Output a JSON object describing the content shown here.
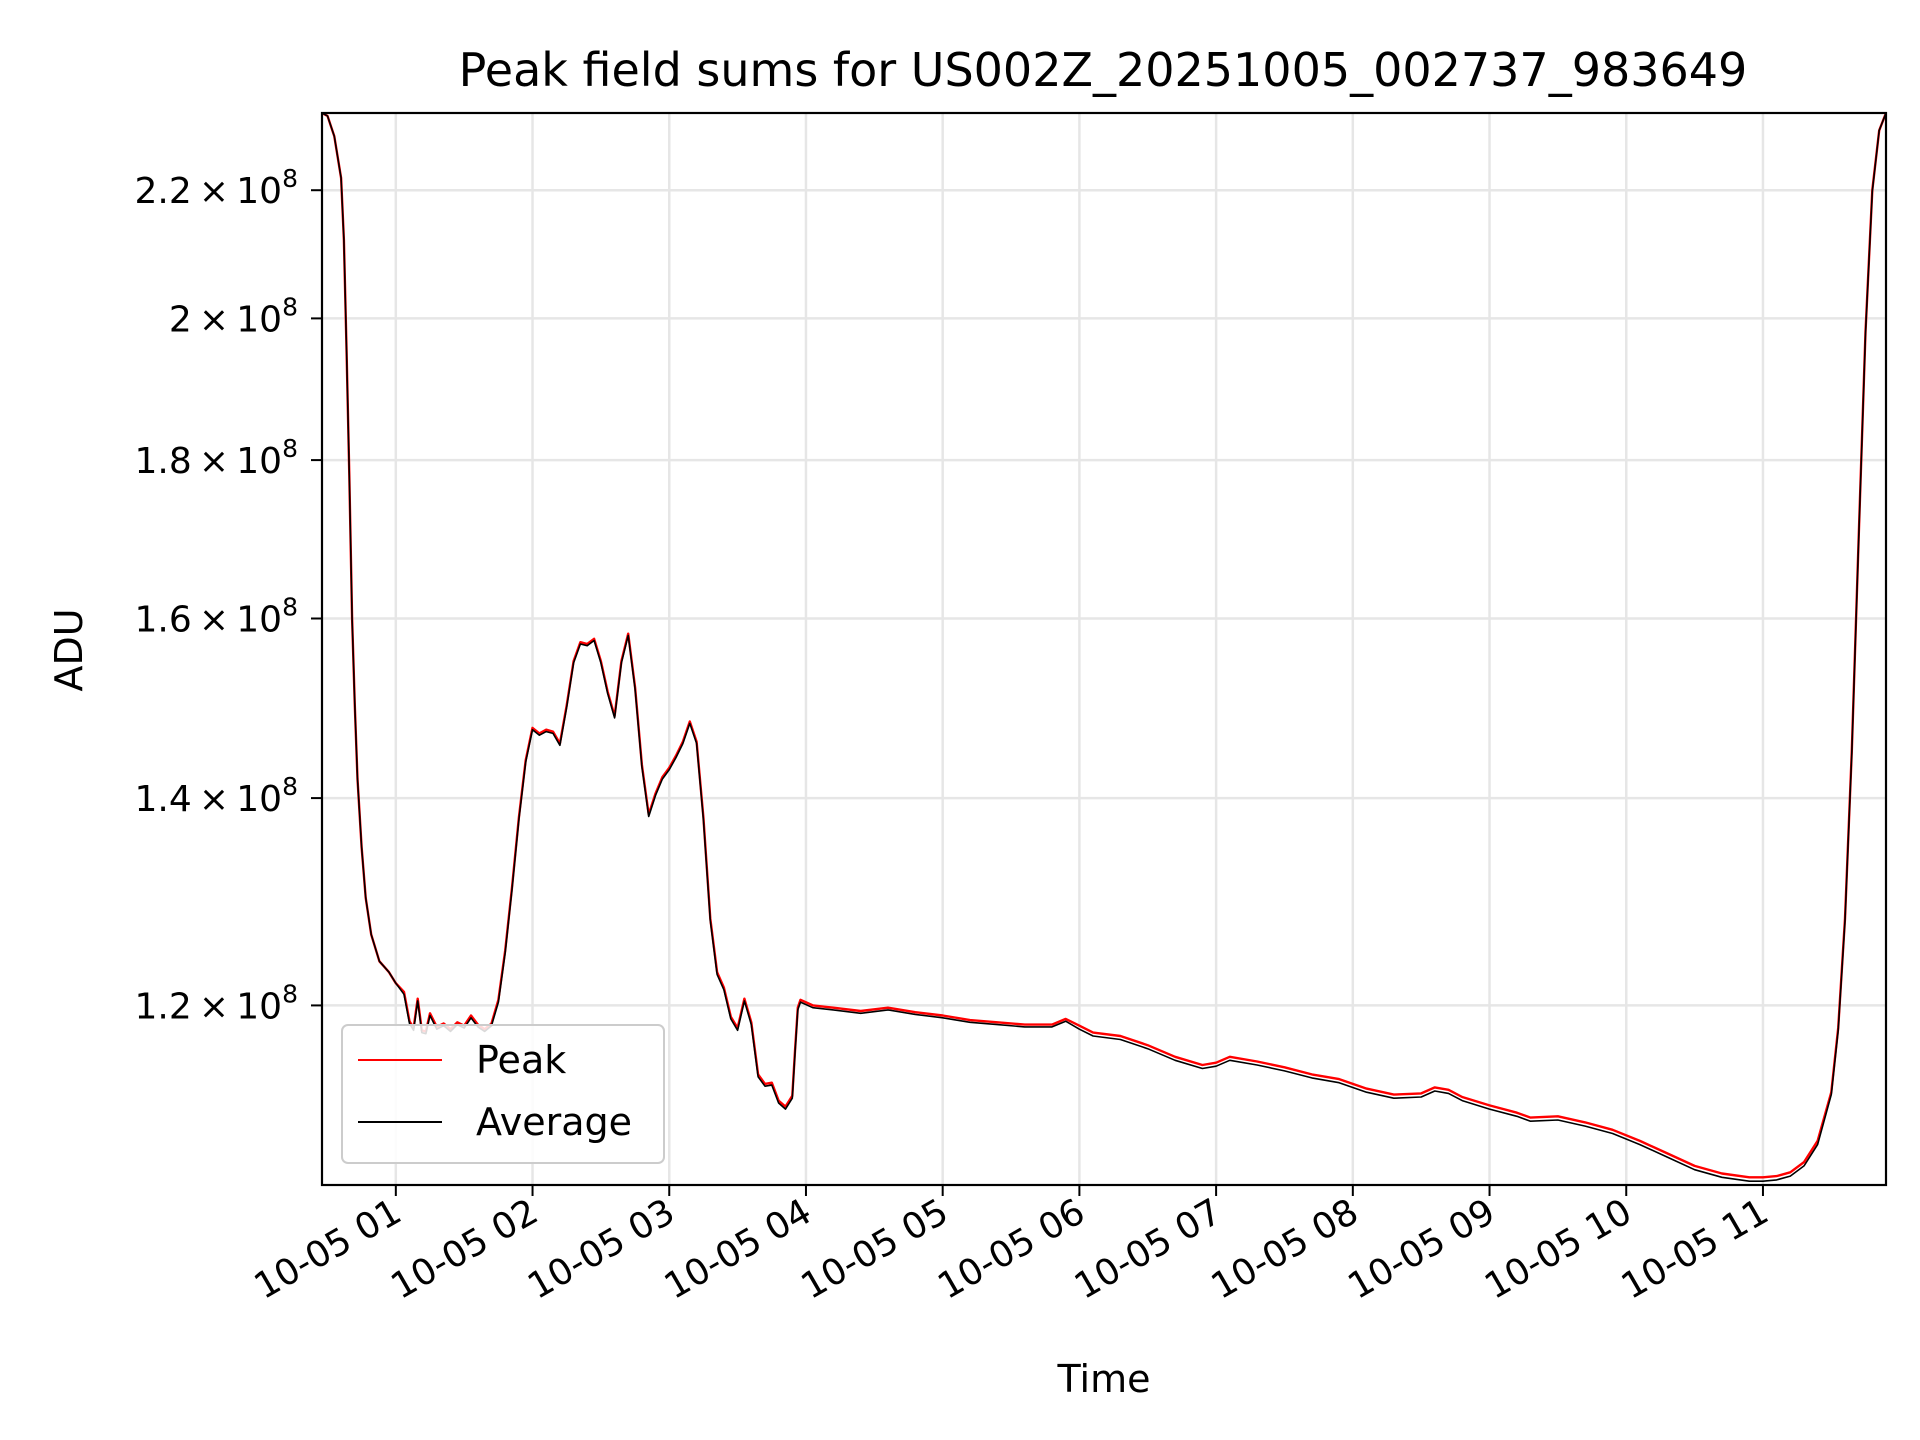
{
  "chart_data": {
    "type": "line",
    "title": "Peak field sums for US002Z_20251005_002737_983649",
    "xlabel": "Time",
    "ylabel": "ADU",
    "yscale": "log",
    "xlim": [
      0.46,
      11.9
    ],
    "ylim": [
      105000000,
      233000000
    ],
    "grid": true,
    "legend_position": "lower-left",
    "x_unit": "hours since 2025-10-05 00:00",
    "x_ticks": [
      {
        "value": 1,
        "label": "10-05 01"
      },
      {
        "value": 2,
        "label": "10-05 02"
      },
      {
        "value": 3,
        "label": "10-05 03"
      },
      {
        "value": 4,
        "label": "10-05 04"
      },
      {
        "value": 5,
        "label": "10-05 05"
      },
      {
        "value": 6,
        "label": "10-05 06"
      },
      {
        "value": 7,
        "label": "10-05 07"
      },
      {
        "value": 8,
        "label": "10-05 08"
      },
      {
        "value": 9,
        "label": "10-05 09"
      },
      {
        "value": 10,
        "label": "10-05 10"
      },
      {
        "value": 11,
        "label": "10-05 11"
      }
    ],
    "y_ticks": [
      {
        "value": 120000000,
        "mantissa": "1.2",
        "exponent": "8"
      },
      {
        "value": 140000000,
        "mantissa": "1.4",
        "exponent": "8"
      },
      {
        "value": 160000000,
        "mantissa": "1.6",
        "exponent": "8"
      },
      {
        "value": 180000000,
        "mantissa": "1.8",
        "exponent": "8"
      },
      {
        "value": 200000000,
        "mantissa": "2",
        "exponent": "8"
      },
      {
        "value": 220000000,
        "mantissa": "2.2",
        "exponent": "8"
      }
    ],
    "series": [
      {
        "name": "Peak",
        "color": "#ff0000",
        "points": [
          [
            0.46,
            233000000
          ],
          [
            0.5,
            232500000
          ],
          [
            0.55,
            229000000
          ],
          [
            0.6,
            222000000
          ],
          [
            0.62,
            212000000
          ],
          [
            0.64,
            195000000
          ],
          [
            0.66,
            178000000
          ],
          [
            0.68,
            160000000
          ],
          [
            0.7,
            150000000
          ],
          [
            0.72,
            142000000
          ],
          [
            0.75,
            135000000
          ],
          [
            0.78,
            130000000
          ],
          [
            0.82,
            126500000
          ],
          [
            0.88,
            124000000
          ],
          [
            0.95,
            123000000
          ],
          [
            1.0,
            122000000
          ],
          [
            1.06,
            121200000
          ],
          [
            1.1,
            118600000
          ],
          [
            1.13,
            118000000
          ],
          [
            1.16,
            120600000
          ],
          [
            1.19,
            117800000
          ],
          [
            1.22,
            117700000
          ],
          [
            1.25,
            119300000
          ],
          [
            1.3,
            118100000
          ],
          [
            1.35,
            118400000
          ],
          [
            1.4,
            117900000
          ],
          [
            1.45,
            118500000
          ],
          [
            1.5,
            118200000
          ],
          [
            1.55,
            119100000
          ],
          [
            1.6,
            118300000
          ],
          [
            1.65,
            117900000
          ],
          [
            1.7,
            118400000
          ],
          [
            1.75,
            120500000
          ],
          [
            1.8,
            125000000
          ],
          [
            1.85,
            131000000
          ],
          [
            1.9,
            138000000
          ],
          [
            1.95,
            144000000
          ],
          [
            2.0,
            147500000
          ],
          [
            2.05,
            146900000
          ],
          [
            2.1,
            147300000
          ],
          [
            2.15,
            147100000
          ],
          [
            2.2,
            145800000
          ],
          [
            2.25,
            150000000
          ],
          [
            2.3,
            155000000
          ],
          [
            2.35,
            157200000
          ],
          [
            2.4,
            157000000
          ],
          [
            2.45,
            157600000
          ],
          [
            2.5,
            155000000
          ],
          [
            2.55,
            151500000
          ],
          [
            2.6,
            148800000
          ],
          [
            2.65,
            155000000
          ],
          [
            2.7,
            158200000
          ],
          [
            2.75,
            152000000
          ],
          [
            2.8,
            143500000
          ],
          [
            2.85,
            138300000
          ],
          [
            2.9,
            140500000
          ],
          [
            2.95,
            142200000
          ],
          [
            3.0,
            143200000
          ],
          [
            3.05,
            144500000
          ],
          [
            3.1,
            146000000
          ],
          [
            3.15,
            148200000
          ],
          [
            3.2,
            146000000
          ],
          [
            3.25,
            138000000
          ],
          [
            3.3,
            128000000
          ],
          [
            3.35,
            123000000
          ],
          [
            3.4,
            121600000
          ],
          [
            3.45,
            119000000
          ],
          [
            3.5,
            118000000
          ],
          [
            3.55,
            120600000
          ],
          [
            3.6,
            118500000
          ],
          [
            3.65,
            114000000
          ],
          [
            3.7,
            113200000
          ],
          [
            3.75,
            113300000
          ],
          [
            3.8,
            111800000
          ],
          [
            3.85,
            111300000
          ],
          [
            3.9,
            112200000
          ],
          [
            3.92,
            116000000
          ],
          [
            3.94,
            119800000
          ],
          [
            3.96,
            120500000
          ],
          [
            4.05,
            120000000
          ],
          [
            4.2,
            119800000
          ],
          [
            4.4,
            119500000
          ],
          [
            4.6,
            119800000
          ],
          [
            4.8,
            119400000
          ],
          [
            5.0,
            119100000
          ],
          [
            5.2,
            118700000
          ],
          [
            5.4,
            118500000
          ],
          [
            5.6,
            118300000
          ],
          [
            5.8,
            118300000
          ],
          [
            5.9,
            118800000
          ],
          [
            6.0,
            118200000
          ],
          [
            6.1,
            117600000
          ],
          [
            6.3,
            117300000
          ],
          [
            6.5,
            116500000
          ],
          [
            6.7,
            115500000
          ],
          [
            6.9,
            114800000
          ],
          [
            7.0,
            115000000
          ],
          [
            7.1,
            115500000
          ],
          [
            7.3,
            115100000
          ],
          [
            7.5,
            114600000
          ],
          [
            7.7,
            114000000
          ],
          [
            7.9,
            113600000
          ],
          [
            8.1,
            112800000
          ],
          [
            8.3,
            112300000
          ],
          [
            8.5,
            112400000
          ],
          [
            8.6,
            112900000
          ],
          [
            8.7,
            112700000
          ],
          [
            8.8,
            112100000
          ],
          [
            9.0,
            111400000
          ],
          [
            9.2,
            110800000
          ],
          [
            9.3,
            110400000
          ],
          [
            9.5,
            110500000
          ],
          [
            9.7,
            110000000
          ],
          [
            9.9,
            109400000
          ],
          [
            10.1,
            108500000
          ],
          [
            10.3,
            107500000
          ],
          [
            10.5,
            106500000
          ],
          [
            10.7,
            105900000
          ],
          [
            10.9,
            105600000
          ],
          [
            11.0,
            105600000
          ],
          [
            11.1,
            105700000
          ],
          [
            11.2,
            106000000
          ],
          [
            11.3,
            106800000
          ],
          [
            11.4,
            108500000
          ],
          [
            11.5,
            112500000
          ],
          [
            11.55,
            118000000
          ],
          [
            11.6,
            128000000
          ],
          [
            11.65,
            145000000
          ],
          [
            11.7,
            170000000
          ],
          [
            11.75,
            198000000
          ],
          [
            11.8,
            220000000
          ],
          [
            11.85,
            230000000
          ],
          [
            11.9,
            233000000
          ]
        ]
      },
      {
        "name": "Average",
        "color": "#000000",
        "points": [
          [
            0.46,
            233000000
          ],
          [
            0.5,
            232500000
          ],
          [
            0.55,
            229000000
          ],
          [
            0.6,
            222000000
          ],
          [
            0.62,
            212000000
          ],
          [
            0.64,
            195000000
          ],
          [
            0.66,
            178000000
          ],
          [
            0.68,
            160000000
          ],
          [
            0.7,
            150000000
          ],
          [
            0.72,
            142000000
          ],
          [
            0.75,
            135000000
          ],
          [
            0.78,
            130000000
          ],
          [
            0.82,
            126500000
          ],
          [
            0.88,
            124000000
          ],
          [
            0.95,
            123000000
          ],
          [
            1.0,
            122000000
          ],
          [
            1.06,
            121000000
          ],
          [
            1.1,
            118400000
          ],
          [
            1.13,
            117800000
          ],
          [
            1.16,
            120400000
          ],
          [
            1.19,
            117600000
          ],
          [
            1.22,
            117500000
          ],
          [
            1.25,
            119100000
          ],
          [
            1.3,
            117900000
          ],
          [
            1.35,
            118200000
          ],
          [
            1.4,
            117700000
          ],
          [
            1.45,
            118300000
          ],
          [
            1.5,
            118000000
          ],
          [
            1.55,
            118900000
          ],
          [
            1.6,
            118100000
          ],
          [
            1.65,
            117700000
          ],
          [
            1.7,
            118200000
          ],
          [
            1.75,
            120300000
          ],
          [
            1.8,
            124800000
          ],
          [
            1.85,
            130800000
          ],
          [
            1.9,
            137800000
          ],
          [
            1.95,
            143800000
          ],
          [
            2.0,
            147300000
          ],
          [
            2.05,
            146700000
          ],
          [
            2.1,
            147100000
          ],
          [
            2.15,
            146900000
          ],
          [
            2.2,
            145600000
          ],
          [
            2.25,
            149800000
          ],
          [
            2.3,
            154800000
          ],
          [
            2.35,
            157000000
          ],
          [
            2.4,
            156800000
          ],
          [
            2.45,
            157400000
          ],
          [
            2.5,
            154800000
          ],
          [
            2.55,
            151300000
          ],
          [
            2.6,
            148600000
          ],
          [
            2.65,
            154800000
          ],
          [
            2.7,
            158000000
          ],
          [
            2.75,
            151800000
          ],
          [
            2.8,
            143300000
          ],
          [
            2.85,
            138100000
          ],
          [
            2.9,
            140300000
          ],
          [
            2.95,
            142000000
          ],
          [
            3.0,
            143000000
          ],
          [
            3.05,
            144300000
          ],
          [
            3.1,
            145800000
          ],
          [
            3.15,
            148000000
          ],
          [
            3.2,
            145800000
          ],
          [
            3.25,
            137800000
          ],
          [
            3.3,
            127800000
          ],
          [
            3.35,
            122800000
          ],
          [
            3.4,
            121400000
          ],
          [
            3.45,
            118800000
          ],
          [
            3.5,
            117800000
          ],
          [
            3.55,
            120400000
          ],
          [
            3.6,
            118300000
          ],
          [
            3.65,
            113800000
          ],
          [
            3.7,
            113000000
          ],
          [
            3.75,
            113100000
          ],
          [
            3.8,
            111600000
          ],
          [
            3.85,
            111100000
          ],
          [
            3.9,
            112000000
          ],
          [
            3.92,
            115800000
          ],
          [
            3.94,
            119600000
          ],
          [
            3.96,
            120300000
          ],
          [
            4.05,
            119800000
          ],
          [
            4.2,
            119600000
          ],
          [
            4.4,
            119300000
          ],
          [
            4.6,
            119600000
          ],
          [
            4.8,
            119200000
          ],
          [
            5.0,
            118900000
          ],
          [
            5.2,
            118500000
          ],
          [
            5.4,
            118300000
          ],
          [
            5.6,
            118100000
          ],
          [
            5.8,
            118100000
          ],
          [
            5.9,
            118600000
          ],
          [
            6.0,
            117900000
          ],
          [
            6.1,
            117300000
          ],
          [
            6.3,
            117000000
          ],
          [
            6.5,
            116200000
          ],
          [
            6.7,
            115200000
          ],
          [
            6.9,
            114500000
          ],
          [
            7.0,
            114700000
          ],
          [
            7.1,
            115200000
          ],
          [
            7.3,
            114800000
          ],
          [
            7.5,
            114300000
          ],
          [
            7.7,
            113700000
          ],
          [
            7.9,
            113300000
          ],
          [
            8.1,
            112500000
          ],
          [
            8.3,
            112000000
          ],
          [
            8.5,
            112100000
          ],
          [
            8.6,
            112600000
          ],
          [
            8.7,
            112400000
          ],
          [
            8.8,
            111800000
          ],
          [
            9.0,
            111100000
          ],
          [
            9.2,
            110500000
          ],
          [
            9.3,
            110100000
          ],
          [
            9.5,
            110200000
          ],
          [
            9.7,
            109700000
          ],
          [
            9.9,
            109100000
          ],
          [
            10.1,
            108200000
          ],
          [
            10.3,
            107200000
          ],
          [
            10.5,
            106200000
          ],
          [
            10.7,
            105600000
          ],
          [
            10.9,
            105300000
          ],
          [
            11.0,
            105300000
          ],
          [
            11.1,
            105400000
          ],
          [
            11.2,
            105700000
          ],
          [
            11.3,
            106500000
          ],
          [
            11.4,
            108200000
          ],
          [
            11.5,
            112300000
          ],
          [
            11.55,
            117800000
          ],
          [
            11.6,
            127800000
          ],
          [
            11.65,
            144800000
          ],
          [
            11.7,
            169800000
          ],
          [
            11.75,
            197800000
          ],
          [
            11.8,
            219800000
          ],
          [
            11.85,
            230000000
          ],
          [
            11.9,
            233000000
          ]
        ]
      }
    ]
  }
}
